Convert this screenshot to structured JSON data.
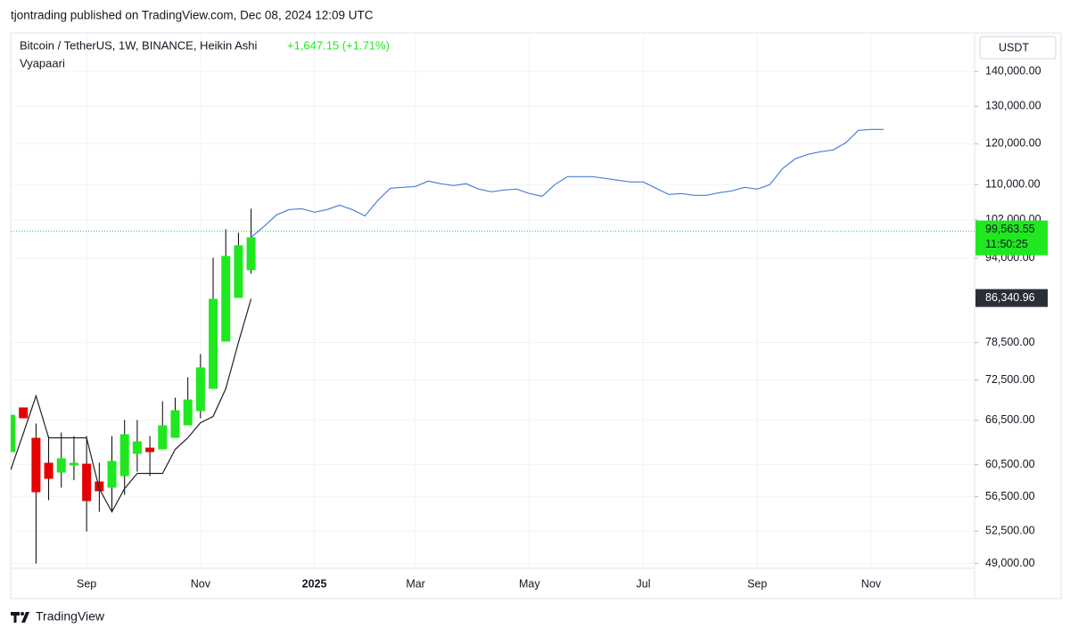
{
  "header": {
    "publisher": "tjontrading published on TradingView.com, Dec 08, 2024 12:09 UTC",
    "logo": "TradingView"
  },
  "chart_data": {
    "type": "candlestick",
    "title": "Bitcoin / TetherUS, 1W, BINANCE, Heikin Ashi",
    "change": "+1,647.15 (+1.71%)",
    "currency": "USDT",
    "log_scale": true,
    "grid": true,
    "up_color": "#1fe81f",
    "down_color": "#e60000",
    "categories": [
      null,
      null,
      null,
      null,
      null,
      null,
      "Sep",
      null,
      null,
      null,
      null,
      null,
      null,
      null,
      null,
      "Nov",
      null,
      null,
      null,
      null,
      null,
      null,
      null,
      null,
      "2025",
      null,
      null,
      null,
      null,
      null,
      null,
      null,
      "Mar",
      null,
      null,
      null,
      null,
      null,
      null,
      null,
      null,
      "May",
      null,
      null,
      null,
      null,
      null,
      null,
      null,
      null,
      "Jul",
      null,
      null,
      null,
      null,
      null,
      null,
      null,
      null,
      "Sep",
      null,
      null,
      null,
      null,
      null,
      null,
      null,
      null,
      "Nov",
      null,
      null,
      null,
      null,
      null,
      null,
      null,
      null
    ],
    "open": [
      62150,
      68360,
      64070,
      60750,
      59490,
      60400,
      60630,
      58370,
      57600,
      59040,
      61920,
      62740,
      62510,
      64070,
      65800,
      67830,
      71140,
      78680,
      86370,
      91620,
      null,
      null,
      null,
      null,
      null,
      null,
      null,
      null,
      null,
      null,
      null,
      null,
      null,
      null,
      null,
      null,
      null,
      null,
      null,
      null,
      null,
      null,
      null,
      null,
      null,
      null,
      null,
      null,
      null,
      null,
      null,
      null,
      null,
      null,
      null,
      null,
      null,
      null,
      null,
      null,
      null,
      null,
      null,
      null,
      null,
      null,
      null,
      null,
      null,
      null,
      null,
      null,
      null,
      null,
      null,
      null,
      null
    ],
    "high": [
      67300,
      68360,
      66050,
      64310,
      64810,
      64310,
      64310,
      60750,
      64310,
      66550,
      66550,
      64310,
      69270,
      69800,
      72910,
      76610,
      94080,
      99990,
      99230,
      104470,
      null,
      null,
      null,
      null,
      null,
      null,
      null,
      null,
      null,
      null,
      null,
      null,
      null,
      null,
      null,
      null,
      null,
      null,
      null,
      null,
      null,
      null,
      null,
      null,
      null,
      null,
      null,
      null,
      null,
      null,
      null,
      null,
      null,
      null,
      null,
      null,
      null,
      null,
      null,
      null,
      null,
      null,
      null,
      null,
      null,
      null,
      null,
      null,
      null,
      null,
      null,
      null,
      null,
      null,
      null,
      null,
      null
    ],
    "low": [
      62150,
      66800,
      49000,
      56090,
      57600,
      58530,
      52470,
      54710,
      54710,
      56730,
      59600,
      59040,
      62510,
      64070,
      65800,
      66800,
      71140,
      78680,
      86370,
      90930,
      null,
      null,
      null,
      null,
      null,
      null,
      null,
      null,
      null,
      null,
      null,
      null,
      null,
      null,
      null,
      null,
      null,
      null,
      null,
      null,
      null,
      null,
      null,
      null,
      null,
      null,
      null,
      null,
      null,
      null,
      null,
      null,
      null,
      null,
      null,
      null,
      null,
      null,
      null,
      null,
      null,
      null,
      null,
      null,
      null,
      null,
      null,
      null,
      null,
      null,
      null,
      null,
      null,
      null,
      null,
      null,
      null
    ],
    "close": [
      67300,
      66800,
      57050,
      58700,
      61330,
      60750,
      55980,
      57170,
      60980,
      64560,
      63590,
      62150,
      65800,
      67960,
      69530,
      74460,
      86190,
      94440,
      96630,
      98290,
      null,
      null,
      null,
      null,
      null,
      null,
      null,
      null,
      null,
      null,
      null,
      null,
      null,
      null,
      null,
      null,
      null,
      null,
      null,
      null,
      null,
      null,
      null,
      null,
      null,
      null,
      null,
      null,
      null,
      null,
      null,
      null,
      null,
      null,
      null,
      null,
      null,
      null,
      null,
      null,
      null,
      null,
      null,
      null,
      null,
      null,
      null,
      null,
      null,
      null,
      null,
      null,
      null,
      null,
      null,
      null,
      null
    ],
    "series": [
      {
        "name": "Vyapaari",
        "color": "#222222",
        "values": [
          59830,
          64690,
          70060,
          64070,
          64070,
          64070,
          64070,
          57490,
          54710,
          57490,
          59380,
          59380,
          59380,
          62510,
          64070,
          66170,
          67060,
          71140,
          78530,
          86190,
          null,
          null,
          null,
          null,
          null,
          null,
          null,
          null,
          null,
          null,
          null,
          null,
          null,
          null,
          null,
          null,
          null,
          null,
          null,
          null,
          null,
          null,
          null,
          null,
          null,
          null,
          null,
          null,
          null,
          null,
          null,
          null,
          null,
          null,
          null,
          null,
          null,
          null,
          null,
          null,
          null,
          null,
          null,
          null,
          null,
          null,
          null,
          null,
          null,
          null,
          null,
          null,
          null,
          null,
          null,
          null,
          null
        ]
      },
      {
        "color": "#4a7fd4",
        "values": [
          null,
          null,
          null,
          null,
          null,
          null,
          null,
          null,
          null,
          null,
          null,
          null,
          null,
          null,
          null,
          null,
          null,
          null,
          null,
          98290,
          100560,
          103080,
          104260,
          104460,
          103670,
          104260,
          105260,
          104260,
          102880,
          106270,
          109130,
          109340,
          109550,
          110800,
          110180,
          109760,
          110180,
          108930,
          108310,
          108720,
          108930,
          107900,
          107280,
          109970,
          111860,
          111860,
          111860,
          111440,
          111010,
          110590,
          110590,
          109130,
          107690,
          107900,
          107490,
          107490,
          108100,
          108510,
          109340,
          108930,
          109970,
          113790,
          116190,
          117310,
          117980,
          118430,
          120250,
          123490,
          123720,
          123720,
          null,
          null,
          null,
          null,
          null,
          null,
          null
        ]
      }
    ],
    "last_price": {
      "value": 99563.55,
      "label": "99,563.55",
      "countdown": "11:50:25",
      "color": "#1fe81f"
    },
    "marker": {
      "value": 86340.96,
      "label": "86,340.96"
    },
    "ylim": [
      48500,
      152000
    ],
    "yticks": [
      {
        "value": 49000,
        "label": "49,000.00"
      },
      {
        "value": 52500,
        "label": "52,500.00"
      },
      {
        "value": 56500,
        "label": "56,500.00"
      },
      {
        "value": 60500,
        "label": "60,500.00"
      },
      {
        "value": 66500,
        "label": "66,500.00"
      },
      {
        "value": 72500,
        "label": "72,500.00"
      },
      {
        "value": 78500,
        "label": "78,500.00"
      },
      {
        "value": 94000,
        "label": "94,000.00"
      },
      {
        "value": 102000,
        "label": "102,000.00"
      },
      {
        "value": 110000,
        "label": "110,000.00"
      },
      {
        "value": 120000,
        "label": "120,000.00"
      },
      {
        "value": 130000,
        "label": "130,000.00"
      },
      {
        "value": 140000,
        "label": "140,000.00"
      }
    ]
  }
}
